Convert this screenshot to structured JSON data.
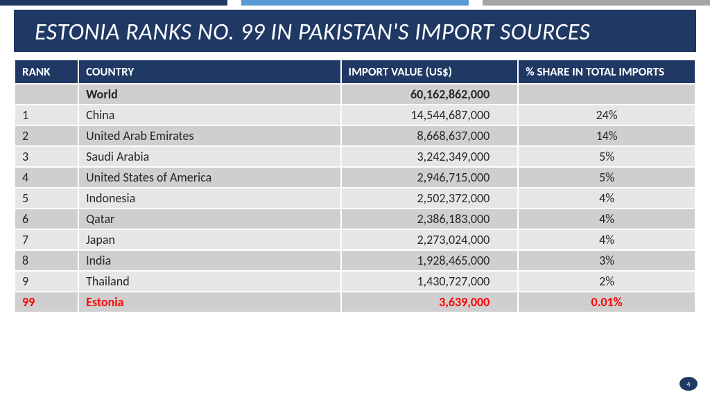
{
  "title": "ESTONIA RANKS NO. 99 IN PAKISTAN'S IMPORT SOURCES",
  "columns": {
    "rank": "RANK",
    "country": "COUNTRY",
    "value": "IMPORT  VALUE (US$)",
    "share": "% SHARE IN TOTAL IMPORTS"
  },
  "rows": [
    {
      "rank": "",
      "country": "World",
      "value": "60,162,862,000",
      "share": "",
      "bold": true,
      "shade": "even"
    },
    {
      "rank": "1",
      "country": "China",
      "value": "14,544,687,000",
      "share": "24%",
      "bold": false,
      "shade": "odd"
    },
    {
      "rank": "2",
      "country": "United Arab Emirates",
      "value": "8,668,637,000",
      "share": "14%",
      "bold": false,
      "shade": "even"
    },
    {
      "rank": "3",
      "country": "Saudi Arabia",
      "value": "3,242,349,000",
      "share": "5%",
      "bold": false,
      "shade": "odd"
    },
    {
      "rank": "4",
      "country": "United States of America",
      "value": "2,946,715,000",
      "share": "5%",
      "bold": false,
      "shade": "even"
    },
    {
      "rank": "5",
      "country": "Indonesia",
      "value": "2,502,372,000",
      "share": "4%",
      "bold": false,
      "shade": "odd"
    },
    {
      "rank": "6",
      "country": "Qatar",
      "value": "2,386,183,000",
      "share": "4%",
      "bold": false,
      "shade": "even"
    },
    {
      "rank": "7",
      "country": "Japan",
      "value": "2,273,024,000",
      "share": "4%",
      "bold": false,
      "shade": "odd"
    },
    {
      "rank": "8",
      "country": "India",
      "value": "1,928,465,000",
      "share": "3%",
      "bold": false,
      "shade": "even"
    },
    {
      "rank": "9",
      "country": "Thailand",
      "value": "1,430,727,000",
      "share": "2%",
      "bold": false,
      "shade": "odd"
    },
    {
      "rank": "99",
      "country": "Estonia",
      "value": "3,639,000",
      "share": "0.01%",
      "bold": false,
      "shade": "even",
      "highlight": true
    }
  ],
  "page_number": "4",
  "colors": {
    "header_bg": "#1f3864",
    "row_even": "#d0cece",
    "row_odd": "#e7e6e6",
    "highlight": "#ff0000",
    "bar_mid": "#5b9bd5",
    "bar_right": "#a5a5a5"
  }
}
